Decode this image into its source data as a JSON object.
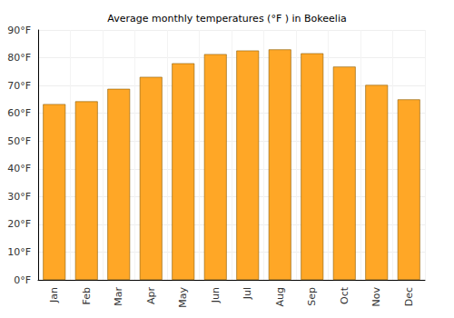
{
  "chart_data": {
    "type": "bar",
    "title": "Average monthly temperatures (°F ) in Bokeelia",
    "categories": [
      "Jan",
      "Feb",
      "Mar",
      "Apr",
      "May",
      "Jun",
      "Jul",
      "Aug",
      "Sep",
      "Oct",
      "Nov",
      "Dec"
    ],
    "values": [
      63.3,
      64.3,
      68.8,
      73.1,
      78.0,
      81.3,
      82.6,
      83.0,
      81.6,
      76.8,
      70.2,
      65.0
    ],
    "color": "#ffa726",
    "ylim": [
      0,
      90
    ],
    "yticks": [
      {
        "value": 0,
        "label": "0°F"
      },
      {
        "value": 10,
        "label": "10°F"
      },
      {
        "value": 20,
        "label": "20°F"
      },
      {
        "value": 30,
        "label": "30°F"
      },
      {
        "value": 40,
        "label": "40°F"
      },
      {
        "value": 50,
        "label": "50°F"
      },
      {
        "value": 60,
        "label": "60°F"
      },
      {
        "value": 70,
        "label": "70°F"
      },
      {
        "value": 80,
        "label": "80°F"
      },
      {
        "value": 90,
        "label": "90°F"
      }
    ],
    "grid": true
  }
}
